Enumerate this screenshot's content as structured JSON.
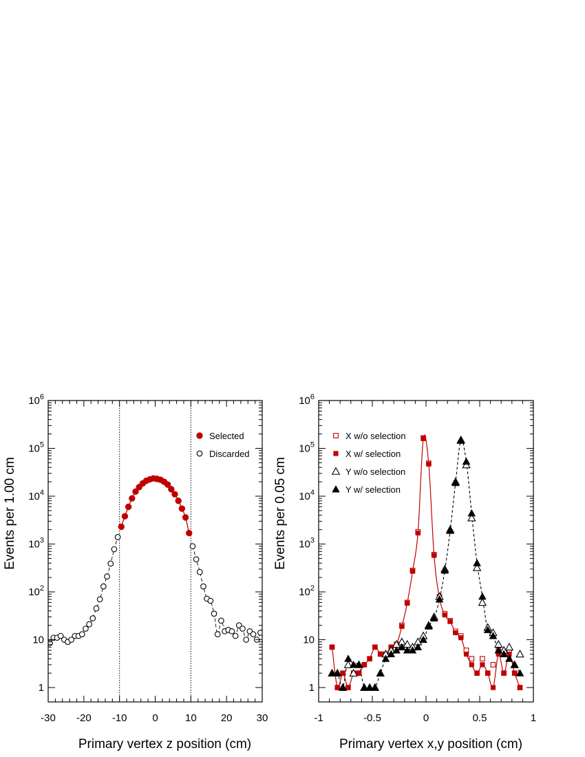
{
  "colors": {
    "selected": "#c00000",
    "black": "#000000",
    "background": "#ffffff"
  },
  "chart_data": [
    {
      "type": "scatter",
      "name": "z-position",
      "xlabel": "Primary vertex z position (cm)",
      "ylabel": "Events per 1.00 cm",
      "xlim": [
        -30,
        30
      ],
      "ylim": [
        0.5,
        1000000
      ],
      "yscale": "log",
      "xticks": [
        "-30",
        "-20",
        "-10",
        "0",
        "10",
        "20",
        "30"
      ],
      "xtick_values": [
        -30,
        -20,
        -10,
        0,
        10,
        20,
        30
      ],
      "yticks": [
        "1",
        "10",
        "10^2",
        "10^3",
        "10^4",
        "10^5",
        "10^6"
      ],
      "ytick_values": [
        1,
        10,
        100,
        1000,
        10000,
        100000,
        1000000
      ],
      "cut_lines": [
        -10,
        10
      ],
      "legend_position": "top-right",
      "series": [
        {
          "name": "Selected",
          "marker": "filled-circle",
          "color": "#c00000",
          "x": [
            -9.5,
            -8.5,
            -7.5,
            -6.5,
            -5.5,
            -4.5,
            -3.5,
            -2.5,
            -1.5,
            -0.5,
            0.5,
            1.5,
            2.5,
            3.5,
            4.5,
            5.5,
            6.5,
            7.5,
            8.5,
            9.5
          ],
          "y": [
            2300,
            3800,
            6000,
            9000,
            12500,
            15500,
            18500,
            21000,
            22500,
            23500,
            23000,
            22000,
            20000,
            17500,
            14000,
            11000,
            8000,
            5500,
            3600,
            1700
          ]
        },
        {
          "name": "Discarded",
          "marker": "open-circle",
          "color": "#000000",
          "x": [
            -29.5,
            -28.5,
            -27.5,
            -26.5,
            -25.5,
            -24.5,
            -23.5,
            -22.5,
            -21.5,
            -20.5,
            -19.5,
            -18.5,
            -17.5,
            -16.5,
            -15.5,
            -14.5,
            -13.5,
            -12.5,
            -11.5,
            -10.5,
            10.5,
            11.5,
            12.5,
            13.5,
            14.5,
            15.5,
            16.5,
            17.5,
            18.5,
            19.5,
            20.5,
            21.5,
            22.5,
            23.5,
            24.5,
            25.5,
            26.5,
            27.5,
            28.5,
            29.5
          ],
          "y": [
            8.5,
            11,
            11,
            12,
            10,
            9,
            10,
            12,
            12,
            13,
            17,
            21,
            28,
            45,
            70,
            130,
            210,
            390,
            780,
            1400,
            900,
            480,
            260,
            130,
            72,
            65,
            35,
            13,
            25,
            15,
            16,
            15,
            12,
            20,
            17,
            10,
            15,
            13,
            10,
            14
          ]
        }
      ]
    },
    {
      "type": "scatter",
      "name": "xy-position",
      "xlabel": "Primary vertex x,y position (cm)",
      "ylabel": "Events per 0.05 cm",
      "xlim": [
        -1,
        1
      ],
      "ylim": [
        0.5,
        1000000
      ],
      "yscale": "log",
      "xticks": [
        "-1",
        "-0.5",
        "0",
        "0.5",
        "1"
      ],
      "xtick_values": [
        -1,
        -0.5,
        0,
        0.5,
        1
      ],
      "yticks": [
        "1",
        "10",
        "10^2",
        "10^3",
        "10^4",
        "10^5",
        "10^6"
      ],
      "ytick_values": [
        1,
        10,
        100,
        1000,
        10000,
        100000,
        1000000
      ],
      "legend_position": "top-left",
      "series": [
        {
          "name": "X w/o selection",
          "marker": "open-square",
          "color": "#c00000",
          "x": [
            -0.875,
            -0.825,
            -0.775,
            -0.725,
            -0.675,
            -0.625,
            -0.575,
            -0.525,
            -0.475,
            -0.425,
            -0.375,
            -0.325,
            -0.275,
            -0.225,
            -0.175,
            -0.125,
            -0.075,
            -0.025,
            0.025,
            0.075,
            0.125,
            0.175,
            0.225,
            0.275,
            0.325,
            0.375,
            0.425,
            0.475,
            0.525,
            0.575,
            0.625,
            0.675,
            0.725,
            0.775,
            0.825,
            0.875
          ],
          "y": [
            7,
            1,
            2,
            1,
            2,
            2,
            3,
            4,
            7,
            5,
            5,
            7,
            8,
            20,
            60,
            280,
            1800,
            165000,
            49000,
            600,
            80,
            35,
            25,
            15,
            12,
            6,
            4,
            2,
            4,
            2,
            3,
            6,
            2,
            6,
            2,
            1
          ]
        },
        {
          "name": "X w/ selection",
          "marker": "filled-square",
          "color": "#c00000",
          "x": [
            -0.875,
            -0.825,
            -0.775,
            -0.725,
            -0.675,
            -0.625,
            -0.575,
            -0.525,
            -0.475,
            -0.425,
            -0.375,
            -0.325,
            -0.275,
            -0.225,
            -0.175,
            -0.125,
            -0.075,
            -0.025,
            0.025,
            0.075,
            0.125,
            0.175,
            0.225,
            0.275,
            0.325,
            0.375,
            0.425,
            0.475,
            0.525,
            0.575,
            0.625,
            0.675,
            0.725,
            0.775,
            0.825,
            0.875
          ],
          "y": [
            7,
            1,
            2,
            1,
            2,
            2,
            3,
            4,
            7,
            5,
            5,
            7,
            8,
            19,
            58,
            270,
            1700,
            160000,
            47000,
            580,
            75,
            33,
            24,
            14,
            11,
            5,
            3,
            2,
            3,
            2,
            1,
            5,
            2,
            5,
            2,
            1
          ]
        },
        {
          "name": "Y w/o selection",
          "marker": "open-triangle",
          "color": "#000000",
          "x": [
            -0.875,
            -0.825,
            -0.775,
            -0.725,
            -0.675,
            -0.625,
            -0.575,
            -0.525,
            -0.475,
            -0.425,
            -0.375,
            -0.325,
            -0.275,
            -0.225,
            -0.175,
            -0.125,
            -0.075,
            -0.025,
            0.025,
            0.075,
            0.125,
            0.175,
            0.225,
            0.275,
            0.325,
            0.375,
            0.425,
            0.475,
            0.525,
            0.575,
            0.625,
            0.675,
            0.725,
            0.775,
            0.825,
            0.875
          ],
          "y": [
            2,
            2,
            1,
            3,
            2,
            3,
            1,
            1,
            1,
            2,
            5,
            6,
            8,
            9,
            8,
            7,
            9,
            12,
            20,
            30,
            80,
            300,
            2000,
            20000,
            150000,
            45000,
            3500,
            320,
            60,
            18,
            14,
            8,
            6,
            7,
            3,
            5
          ]
        },
        {
          "name": "Y w/ selection",
          "marker": "filled-triangle",
          "color": "#000000",
          "x": [
            -0.875,
            -0.825,
            -0.775,
            -0.725,
            -0.675,
            -0.625,
            -0.575,
            -0.525,
            -0.475,
            -0.425,
            -0.375,
            -0.325,
            -0.275,
            -0.225,
            -0.175,
            -0.125,
            -0.075,
            -0.025,
            0.025,
            0.075,
            0.125,
            0.175,
            0.225,
            0.275,
            0.325,
            0.375,
            0.425,
            0.475,
            0.525,
            0.575,
            0.625,
            0.675,
            0.725,
            0.775,
            0.825,
            0.875
          ],
          "y": [
            2,
            2,
            1,
            4,
            3,
            3,
            1,
            1,
            1,
            2,
            4,
            5,
            6,
            7,
            6,
            6,
            7,
            10,
            19,
            28,
            70,
            280,
            1900,
            19000,
            145000,
            53000,
            4400,
            400,
            80,
            16,
            12,
            6,
            5,
            4,
            3,
            2
          ]
        }
      ]
    }
  ]
}
